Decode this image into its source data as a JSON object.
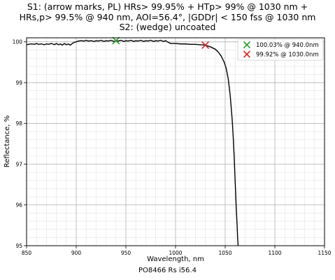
{
  "chart_data": {
    "type": "line",
    "title_lines": [
      "S1: (arrow marks, PL) HRs> 99.95% + HTp> 99% @ 1030 nm +",
      "HRs,p> 99.5% @ 940 nm, AOI=56.4°, |GDDr| < 150 fss @ 1030 nm",
      "S2: (wedge) uncoated"
    ],
    "xlabel": "Wavelength, nm",
    "ylabel": "Reflectance, %",
    "xlim": [
      850,
      1150
    ],
    "ylim": [
      95,
      100.1
    ],
    "xticks": [
      850,
      900,
      950,
      1000,
      1050,
      1100,
      1150
    ],
    "yticks": [
      95,
      96,
      97,
      98,
      99,
      100
    ],
    "grid": true,
    "legend_position": "top-right",
    "series": [
      {
        "color": "#000000",
        "x": [
          850,
          852,
          855,
          858,
          860,
          862,
          865,
          868,
          870,
          872,
          875,
          878,
          880,
          882,
          884,
          886,
          888,
          890,
          892,
          894,
          896,
          898,
          900,
          902,
          905,
          908,
          910,
          912,
          915,
          918,
          920,
          922,
          925,
          928,
          930,
          932,
          935,
          938,
          940,
          942,
          945,
          948,
          950,
          952,
          955,
          958,
          960,
          962,
          965,
          968,
          970,
          972,
          975,
          978,
          980,
          982,
          985,
          988,
          990,
          992,
          995,
          1000,
          1005,
          1010,
          1015,
          1020,
          1025,
          1030,
          1035,
          1040,
          1043,
          1046,
          1049,
          1051,
          1053,
          1055,
          1057,
          1058,
          1059,
          1060,
          1061,
          1062,
          1062.5,
          1063
        ],
        "y": [
          99.93,
          99.94,
          99.95,
          99.94,
          99.96,
          99.94,
          99.95,
          99.93,
          99.95,
          99.94,
          99.96,
          99.93,
          99.96,
          99.93,
          99.95,
          99.92,
          99.96,
          99.93,
          99.95,
          99.92,
          99.96,
          99.99,
          100.0,
          100.02,
          100.03,
          100.02,
          100.04,
          100.02,
          100.03,
          100.01,
          100.03,
          100.02,
          100.04,
          100.01,
          100.03,
          100.02,
          100.04,
          100.01,
          100.03,
          100.02,
          100.04,
          100.01,
          100.03,
          100.02,
          100.04,
          100.01,
          100.03,
          100.02,
          100.04,
          100.01,
          100.03,
          100.02,
          100.04,
          100.01,
          100.03,
          100.02,
          100.04,
          100.01,
          100.03,
          100.0,
          99.96,
          99.96,
          99.95,
          99.95,
          99.94,
          99.94,
          99.93,
          99.92,
          99.88,
          99.82,
          99.75,
          99.65,
          99.5,
          99.35,
          99.1,
          98.7,
          98.1,
          97.7,
          97.2,
          96.6,
          96.0,
          95.5,
          95.2,
          95.0
        ]
      }
    ],
    "markers": [
      {
        "label": "100.03% @ 940.0nm",
        "x": 940.0,
        "y": 100.03,
        "color": "#2ca02c",
        "marker": "x"
      },
      {
        "label": "99.92% @ 1030.0nm",
        "x": 1030.0,
        "y": 99.92,
        "color": "#d62728",
        "marker": "x"
      }
    ],
    "footer": "PO8466 Rs i56.4"
  }
}
